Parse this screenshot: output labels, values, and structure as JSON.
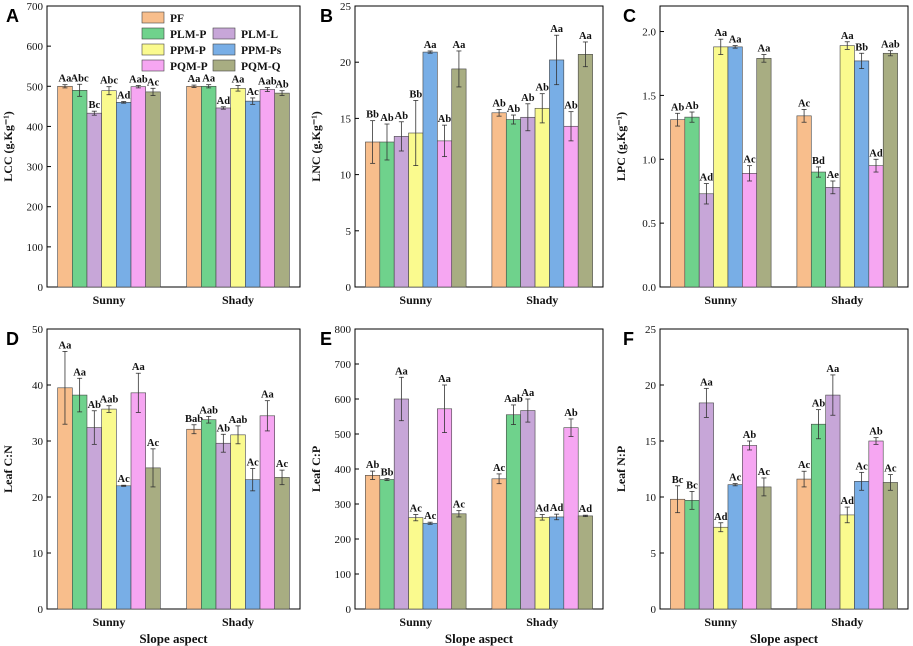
{
  "colors": {
    "PF": "#f8be8c",
    "PLM-P": "#6fd28c",
    "PLM-L": "#c7a6d8",
    "PPM-P": "#fafa8e",
    "PPM-Ps": "#78aee6",
    "PQM-P": "#f6a6f2",
    "PQM-Q": "#a8ad82"
  },
  "legend": {
    "entries": [
      "PF",
      "PLM-P",
      "PLM-L",
      "PPM-P",
      "PPM-Ps",
      "PQM-P",
      "PQM-Q"
    ]
  },
  "chart_data": [
    {
      "panel": "A",
      "type": "bar",
      "ylabel": "LCC (g.Kg⁻¹)",
      "xlabel": "",
      "categories": [
        "Sunny",
        "Shady"
      ],
      "ylim": [
        0,
        700
      ],
      "yticks": [
        0,
        100,
        200,
        300,
        400,
        500,
        600,
        700
      ],
      "series": [
        {
          "name": "PF",
          "values": [
            500,
            500
          ],
          "errors": [
            4,
            3
          ],
          "labels": [
            "Aa",
            "Aa"
          ]
        },
        {
          "name": "PLM-P",
          "values": [
            490,
            500
          ],
          "errors": [
            15,
            4
          ],
          "labels": [
            "Abc",
            "Aa"
          ]
        },
        {
          "name": "PLM-L",
          "values": [
            433,
            446
          ],
          "errors": [
            5,
            3
          ],
          "labels": [
            "Bc",
            "Ad"
          ]
        },
        {
          "name": "PPM-P",
          "values": [
            489,
            495
          ],
          "errors": [
            10,
            7
          ],
          "labels": [
            "Abc",
            "Aa"
          ]
        },
        {
          "name": "PPM-Ps",
          "values": [
            460,
            463
          ],
          "errors": [
            2,
            8
          ],
          "labels": [
            "Ad",
            "Ac"
          ]
        },
        {
          "name": "PQM-P",
          "values": [
            499,
            492
          ],
          "errors": [
            3,
            5
          ],
          "labels": [
            "Aab",
            "Aab"
          ]
        },
        {
          "name": "PQM-Q",
          "values": [
            486,
            483
          ],
          "errors": [
            9,
            6
          ],
          "labels": [
            "Ac",
            "Ab"
          ]
        }
      ]
    },
    {
      "panel": "B",
      "type": "bar",
      "ylabel": "LNC (g.Kg⁻¹)",
      "xlabel": "",
      "categories": [
        "Sunny",
        "Shady"
      ],
      "ylim": [
        0,
        25
      ],
      "yticks": [
        0,
        5,
        10,
        15,
        20,
        25
      ],
      "series": [
        {
          "name": "PF",
          "values": [
            12.9,
            15.5
          ],
          "errors": [
            1.9,
            0.3
          ],
          "labels": [
            "Bb",
            "Ab"
          ]
        },
        {
          "name": "PLM-P",
          "values": [
            12.9,
            14.9
          ],
          "errors": [
            1.6,
            0.4
          ],
          "labels": [
            "Ab",
            "Ab"
          ]
        },
        {
          "name": "PLM-L",
          "values": [
            13.4,
            15.1
          ],
          "errors": [
            1.3,
            1.2
          ],
          "labels": [
            "Ab",
            "Ab"
          ]
        },
        {
          "name": "PPM-P",
          "values": [
            13.7,
            15.9
          ],
          "errors": [
            2.9,
            1.3
          ],
          "labels": [
            "Bb",
            "Ab"
          ]
        },
        {
          "name": "PPM-Ps",
          "values": [
            20.9,
            20.2
          ],
          "errors": [
            0.1,
            2.2
          ],
          "labels": [
            "Aa",
            "Aa"
          ]
        },
        {
          "name": "PQM-P",
          "values": [
            13.0,
            14.3
          ],
          "errors": [
            1.4,
            1.3
          ],
          "labels": [
            "Ab",
            "Ab"
          ]
        },
        {
          "name": "PQM-Q",
          "values": [
            19.4,
            20.7
          ],
          "errors": [
            1.6,
            1.1
          ],
          "labels": [
            "Aa",
            "Aa"
          ]
        }
      ]
    },
    {
      "panel": "C",
      "type": "bar",
      "ylabel": "LPC (g.Kg⁻¹)",
      "xlabel": "",
      "categories": [
        "Sunny",
        "Shady"
      ],
      "ylim": [
        0,
        2.2
      ],
      "yticks": [
        0.0,
        0.5,
        1.0,
        1.5,
        2.0
      ],
      "series": [
        {
          "name": "PF",
          "values": [
            1.31,
            1.34
          ],
          "errors": [
            0.05,
            0.05
          ],
          "labels": [
            "Ab",
            "Ac"
          ]
        },
        {
          "name": "PLM-P",
          "values": [
            1.33,
            0.9
          ],
          "errors": [
            0.04,
            0.04
          ],
          "labels": [
            "Ab",
            "Bd"
          ]
        },
        {
          "name": "PLM-L",
          "values": [
            0.73,
            0.78
          ],
          "errors": [
            0.08,
            0.05
          ],
          "labels": [
            "Ad",
            "Ae"
          ]
        },
        {
          "name": "PPM-P",
          "values": [
            1.88,
            1.89
          ],
          "errors": [
            0.06,
            0.03
          ],
          "labels": [
            "Aa",
            "Aa"
          ]
        },
        {
          "name": "PPM-Ps",
          "values": [
            1.88,
            1.77
          ],
          "errors": [
            0.01,
            0.06
          ],
          "labels": [
            "Aa",
            "Bb"
          ]
        },
        {
          "name": "PQM-P",
          "values": [
            0.89,
            0.95
          ],
          "errors": [
            0.06,
            0.05
          ],
          "labels": [
            "Ac",
            "Ad"
          ]
        },
        {
          "name": "PQM-Q",
          "values": [
            1.79,
            1.83
          ],
          "errors": [
            0.03,
            0.02
          ],
          "labels": [
            "Aa",
            "Aab"
          ]
        }
      ]
    },
    {
      "panel": "D",
      "type": "bar",
      "ylabel": "Leaf C:N",
      "xlabel": "Slope aspect",
      "categories": [
        "Sunny",
        "Shady"
      ],
      "ylim": [
        0,
        50
      ],
      "yticks": [
        0,
        10,
        20,
        30,
        40,
        50
      ],
      "series": [
        {
          "name": "PF",
          "values": [
            39.5,
            32.1
          ],
          "errors": [
            6.5,
            0.8
          ],
          "labels": [
            "Aa",
            "Bab"
          ]
        },
        {
          "name": "PLM-P",
          "values": [
            38.2,
            33.8
          ],
          "errors": [
            3.0,
            0.6
          ],
          "labels": [
            "Aa",
            "Aab"
          ]
        },
        {
          "name": "PLM-L",
          "values": [
            32.4,
            29.6
          ],
          "errors": [
            3.0,
            1.6
          ],
          "labels": [
            "Ab",
            "Ab"
          ]
        },
        {
          "name": "PPM-P",
          "values": [
            35.7,
            31.1
          ],
          "errors": [
            0.6,
            1.6
          ],
          "labels": [
            "Aab",
            "Aab"
          ]
        },
        {
          "name": "PPM-Ps",
          "values": [
            22.0,
            23.1
          ],
          "errors": [
            0.1,
            2.0
          ],
          "labels": [
            "Ac",
            "Ac"
          ]
        },
        {
          "name": "PQM-P",
          "values": [
            38.6,
            34.5
          ],
          "errors": [
            3.5,
            2.7
          ],
          "labels": [
            "Aa",
            "Aa"
          ]
        },
        {
          "name": "PQM-Q",
          "values": [
            25.2,
            23.5
          ],
          "errors": [
            3.4,
            1.3
          ],
          "labels": [
            "Ac",
            "Ac"
          ]
        }
      ]
    },
    {
      "panel": "E",
      "type": "bar",
      "ylabel": "Leaf C:P",
      "xlabel": "Slope aspect",
      "categories": [
        "Sunny",
        "Shady"
      ],
      "ylim": [
        0,
        800
      ],
      "yticks": [
        0,
        100,
        200,
        300,
        400,
        500,
        600,
        700,
        800
      ],
      "series": [
        {
          "name": "PF",
          "values": [
            382,
            372
          ],
          "errors": [
            12,
            14
          ],
          "labels": [
            "Ab",
            "Ac"
          ]
        },
        {
          "name": "PLM-P",
          "values": [
            370,
            555
          ],
          "errors": [
            3,
            28
          ],
          "labels": [
            "Bb",
            "Aab"
          ]
        },
        {
          "name": "PLM-L",
          "values": [
            600,
            567
          ],
          "errors": [
            62,
            33
          ],
          "labels": [
            "Aa",
            "Aa"
          ]
        },
        {
          "name": "PPM-P",
          "values": [
            261,
            262
          ],
          "errors": [
            9,
            8
          ],
          "labels": [
            "Ac",
            "Ad"
          ]
        },
        {
          "name": "PPM-Ps",
          "values": [
            245,
            263
          ],
          "errors": [
            3,
            8
          ],
          "labels": [
            "Ac",
            "Ad"
          ]
        },
        {
          "name": "PQM-P",
          "values": [
            572,
            518
          ],
          "errors": [
            68,
            25
          ],
          "labels": [
            "Aa",
            "Ab"
          ]
        },
        {
          "name": "PQM-Q",
          "values": [
            272,
            266
          ],
          "errors": [
            9,
            2
          ],
          "labels": [
            "Ac",
            "Ad"
          ]
        }
      ]
    },
    {
      "panel": "F",
      "type": "bar",
      "ylabel": "Leaf N:P",
      "xlabel": "Slope aspect",
      "categories": [
        "Sunny",
        "Shady"
      ],
      "ylim": [
        0,
        25
      ],
      "yticks": [
        0,
        5,
        10,
        15,
        20,
        25
      ],
      "series": [
        {
          "name": "PF",
          "values": [
            9.8,
            11.6
          ],
          "errors": [
            1.2,
            0.7
          ],
          "labels": [
            "Bc",
            "Ac"
          ]
        },
        {
          "name": "PLM-P",
          "values": [
            9.7,
            16.5
          ],
          "errors": [
            0.8,
            1.3
          ],
          "labels": [
            "Bc",
            "Ab"
          ]
        },
        {
          "name": "PLM-L",
          "values": [
            18.4,
            19.1
          ],
          "errors": [
            1.3,
            1.8
          ],
          "labels": [
            "Aa",
            "Aa"
          ]
        },
        {
          "name": "PPM-P",
          "values": [
            7.3,
            8.4
          ],
          "errors": [
            0.4,
            0.7
          ],
          "labels": [
            "Ad",
            "Ad"
          ]
        },
        {
          "name": "PPM-Ps",
          "values": [
            11.1,
            11.4
          ],
          "errors": [
            0.1,
            0.8
          ],
          "labels": [
            "Ac",
            "Ac"
          ]
        },
        {
          "name": "PQM-P",
          "values": [
            14.6,
            15.0
          ],
          "errors": [
            0.4,
            0.3
          ],
          "labels": [
            "Ab",
            "Ab"
          ]
        },
        {
          "name": "PQM-Q",
          "values": [
            10.9,
            11.3
          ],
          "errors": [
            0.8,
            0.7
          ],
          "labels": [
            "Ac",
            "Ac"
          ]
        }
      ]
    }
  ]
}
